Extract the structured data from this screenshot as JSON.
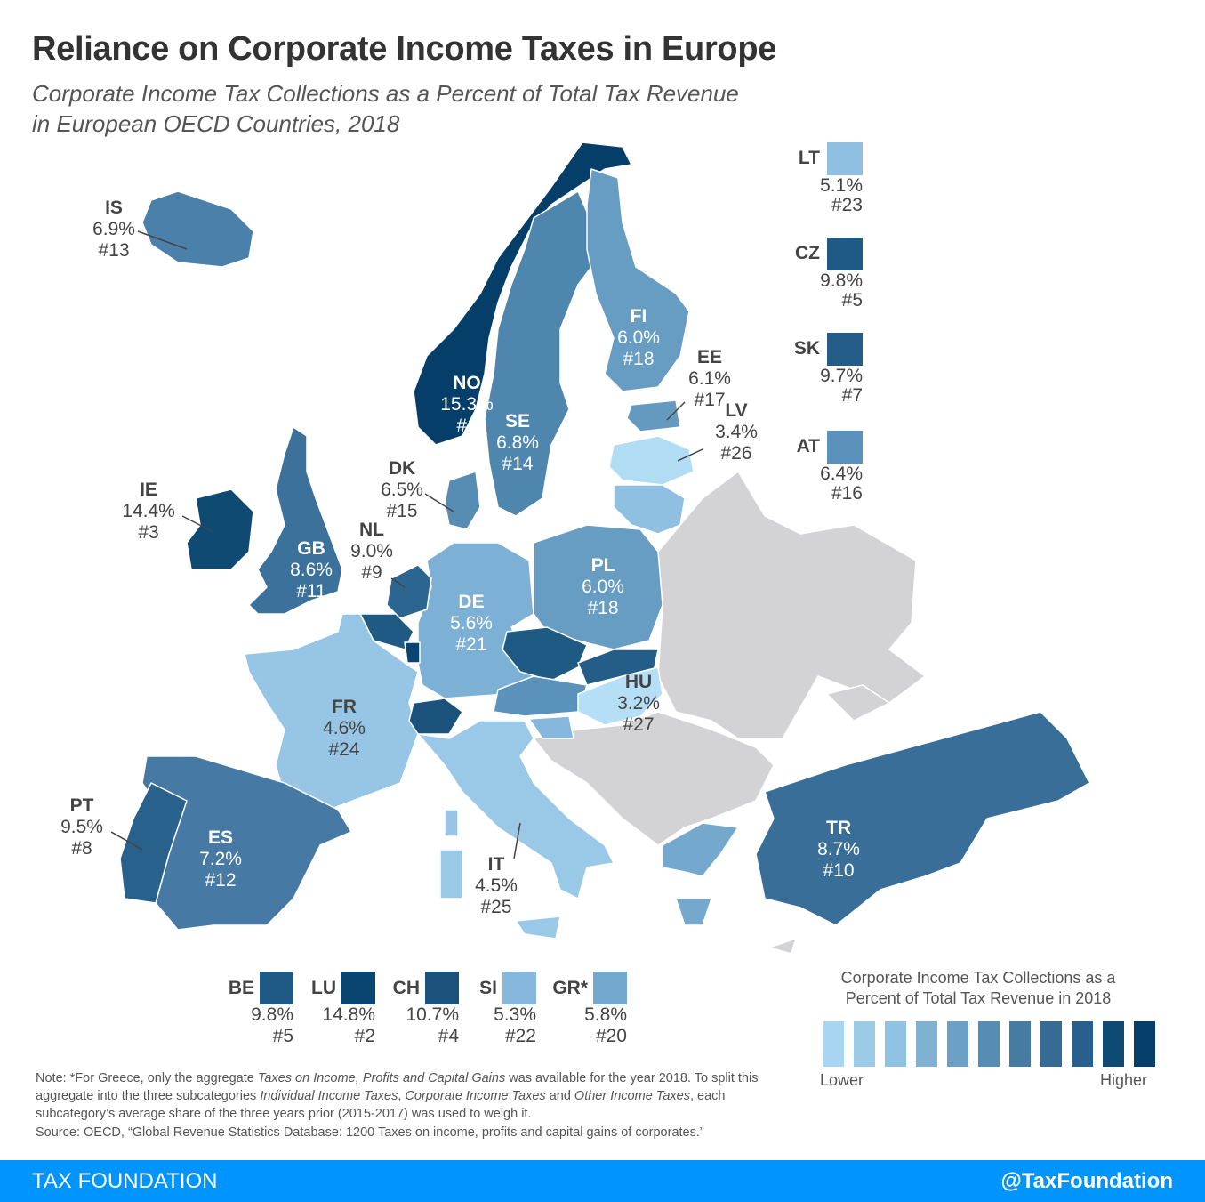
{
  "title": "Reliance on Corporate Income Taxes in Europe",
  "subtitle_line1": "Corporate Income Tax Collections as a Percent of Total Tax Revenue",
  "subtitle_line2": "in European OECD Countries, 2018",
  "non_oecd_color": "#d3d3d5",
  "countries": {
    "NO": {
      "code": "NO",
      "pct": "15.3%",
      "rank": "#1",
      "value": 15.3,
      "color": "#043e69"
    },
    "LU": {
      "code": "LU",
      "pct": "14.8%",
      "rank": "#2",
      "value": 14.8,
      "color": "#0a4470"
    },
    "IE": {
      "code": "IE",
      "pct": "14.4%",
      "rank": "#3",
      "value": 14.4,
      "color": "#0f4a73"
    },
    "CH": {
      "code": "CH",
      "pct": "10.7%",
      "rank": "#4",
      "value": 10.7,
      "color": "#1a527c"
    },
    "BE": {
      "code": "BE",
      "pct": "9.8%",
      "rank": "#5",
      "value": 9.8,
      "color": "#1f5a84"
    },
    "CZ": {
      "code": "CZ",
      "pct": "9.8%",
      "rank": "#5",
      "value": 9.8,
      "color": "#1f5a84"
    },
    "SK": {
      "code": "SK",
      "pct": "9.7%",
      "rank": "#7",
      "value": 9.7,
      "color": "#245e88"
    },
    "PT": {
      "code": "PT",
      "pct": "9.5%",
      "rank": "#8",
      "value": 9.5,
      "color": "#28618c"
    },
    "NL": {
      "code": "NL",
      "pct": "9.0%",
      "rank": "#9",
      "value": 9.0,
      "color": "#2c6590"
    },
    "TR": {
      "code": "TR",
      "pct": "8.7%",
      "rank": "#10",
      "value": 8.7,
      "color": "#386e98"
    },
    "GB": {
      "code": "GB",
      "pct": "8.6%",
      "rank": "#11",
      "value": 8.6,
      "color": "#3b719b"
    },
    "ES": {
      "code": "ES",
      "pct": "7.2%",
      "rank": "#12",
      "value": 7.2,
      "color": "#4679a3"
    },
    "IS": {
      "code": "IS",
      "pct": "6.9%",
      "rank": "#13",
      "value": 6.9,
      "color": "#4a80a9"
    },
    "SE": {
      "code": "SE",
      "pct": "6.8%",
      "rank": "#14",
      "value": 6.8,
      "color": "#4f86ae"
    },
    "DK": {
      "code": "DK",
      "pct": "6.5%",
      "rank": "#15",
      "value": 6.5,
      "color": "#578cb3"
    },
    "AT": {
      "code": "AT",
      "pct": "6.4%",
      "rank": "#16",
      "value": 6.4,
      "color": "#5b92bb"
    },
    "EE": {
      "code": "EE",
      "pct": "6.1%",
      "rank": "#17",
      "value": 6.1,
      "color": "#6499c0"
    },
    "FI": {
      "code": "FI",
      "pct": "6.0%",
      "rank": "#18",
      "value": 6.0,
      "color": "#679cc3"
    },
    "PL": {
      "code": "PL",
      "pct": "6.0%",
      "rank": "#18",
      "value": 6.0,
      "color": "#679cc3"
    },
    "GR": {
      "code": "GR*",
      "pct": "5.8%",
      "rank": "#20",
      "value": 5.8,
      "color": "#75a8cd"
    },
    "DE": {
      "code": "DE",
      "pct": "5.6%",
      "rank": "#21",
      "value": 5.6,
      "color": "#7cb0d5"
    },
    "SI": {
      "code": "SI",
      "pct": "5.3%",
      "rank": "#22",
      "value": 5.3,
      "color": "#85b8dc"
    },
    "LT": {
      "code": "LT",
      "pct": "5.1%",
      "rank": "#23",
      "value": 5.1,
      "color": "#8fc0e2"
    },
    "FR": {
      "code": "FR",
      "pct": "4.6%",
      "rank": "#24",
      "value": 4.6,
      "color": "#96c5e6"
    },
    "IT": {
      "code": "IT",
      "pct": "4.5%",
      "rank": "#25",
      "value": 4.5,
      "color": "#9ac9e8"
    },
    "LV": {
      "code": "LV",
      "pct": "3.4%",
      "rank": "#26",
      "value": 3.4,
      "color": "#b0dcf4"
    },
    "HU": {
      "code": "HU",
      "pct": "3.2%",
      "rank": "#27",
      "value": 3.2,
      "color": "#b5dff6"
    }
  },
  "legend": {
    "title_line1": "Corporate Income Tax Collections as a",
    "title_line2": "Percent of Total Tax Revenue in 2018",
    "low_label": "Lower",
    "high_label": "Higher",
    "colors": [
      "#a8d6f2",
      "#9ccbe8",
      "#90c2e3",
      "#7fb1d3",
      "#6ca0c4",
      "#578cb3",
      "#467ca1",
      "#366b94",
      "#285f8c",
      "#0f4a73",
      "#043e69"
    ]
  },
  "note_prefix": "Note: *For Greece, only the aggregate ",
  "note_i1": "Taxes on Income, Profits and Capital Gains",
  "note_mid1": " was available for the year 2018. To split this aggregate into the three subcategories ",
  "note_i2": "Individual Income Taxes",
  "note_sep": ", ",
  "note_i3": "Corporate Income Taxes",
  "note_and": " and ",
  "note_i4": "Other Income Taxes",
  "note_end": ", each subcategory’s average share of the three years prior (2015-2017) was used to weigh it.",
  "source": "Source: OECD, “Global Revenue Statistics Database: 1200 Taxes on income, profits and capital gains of corporates.”",
  "footer": {
    "left": "TAX FOUNDATION",
    "right": "@TaxFoundation"
  }
}
